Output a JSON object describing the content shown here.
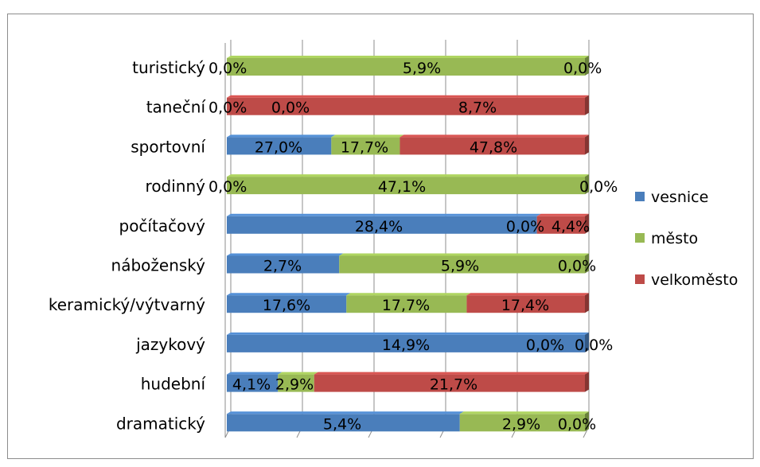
{
  "chart_data": {
    "type": "bar",
    "orientation": "horizontal",
    "stacked": "100%",
    "categories": [
      "turistický",
      "taneční",
      "sportovní",
      "rodinný",
      "počítačový",
      "náboženský",
      "keramický/výtvarný",
      "jazykový",
      "hudební",
      "dramatický"
    ],
    "series": [
      {
        "name": "vesnice",
        "color": "#4a7ebb",
        "values": [
          0.0,
          0.0,
          27.0,
          0.0,
          28.4,
          2.7,
          17.6,
          14.9,
          4.1,
          5.4
        ],
        "labels": [
          "0,0%",
          "0,0%",
          "27,0%",
          "0,0%",
          "28,4%",
          "2,7%",
          "17,6%",
          "14,9%",
          "4,1%",
          "5,4%"
        ]
      },
      {
        "name": "město",
        "color": "#98b954",
        "values": [
          5.9,
          0.0,
          17.7,
          47.1,
          0.0,
          5.9,
          17.7,
          0.0,
          2.9,
          2.9
        ],
        "labels": [
          "5,9%",
          "0,0%",
          "17,7%",
          "47,1%",
          "0,0%",
          "5,9%",
          "17,7%",
          "0,0%",
          "2,9%",
          "2,9%"
        ]
      },
      {
        "name": "velkoměsto",
        "color": "#be4b48",
        "values": [
          0.0,
          8.7,
          47.8,
          0.0,
          4.4,
          0.0,
          17.4,
          0.0,
          21.7,
          0.0
        ],
        "labels": [
          "0,0%",
          "8,7%",
          "47,8%",
          "0,0%",
          "4,4%",
          "0,0%",
          "17,4%",
          "0,0%",
          "21,7%",
          "0,0%"
        ]
      }
    ],
    "grid": true,
    "legend": "right",
    "xlabel": "",
    "ylabel": ""
  }
}
